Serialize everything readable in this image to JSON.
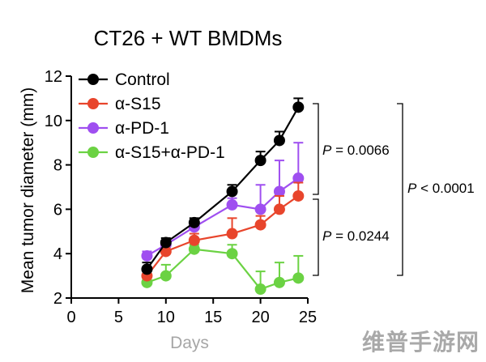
{
  "chart_data": {
    "type": "line",
    "title": "CT26 + WT BMDMs",
    "xlabel": "Days",
    "ylabel": "Mean tumor diameter (mm)",
    "xlim": [
      0,
      25
    ],
    "ylim": [
      2,
      12
    ],
    "xticks": [
      0,
      5,
      10,
      15,
      20,
      25
    ],
    "yticks": [
      2,
      4,
      6,
      8,
      10,
      12
    ],
    "x": [
      8,
      10,
      13,
      17,
      20,
      22,
      24
    ],
    "legend_position": "top-left",
    "series": [
      {
        "name": "Control",
        "color": "#000000",
        "values": [
          3.3,
          4.5,
          5.4,
          6.8,
          8.2,
          9.1,
          10.6
        ],
        "error": [
          0.3,
          0.2,
          0.2,
          0.3,
          0.4,
          0.4,
          0.4
        ]
      },
      {
        "name": "α-S15",
        "color": "#e8452c",
        "values": [
          3.0,
          4.1,
          4.6,
          4.9,
          5.3,
          6.0,
          6.6
        ],
        "error": [
          0.3,
          0.3,
          0.3,
          0.7,
          0.4,
          0.6,
          0.6
        ]
      },
      {
        "name": "α-PD-1",
        "color": "#9f4ff0",
        "values": [
          3.9,
          4.4,
          5.2,
          6.2,
          6.0,
          6.8,
          7.4
        ],
        "error": [
          0.2,
          0.2,
          0.3,
          0.3,
          1.1,
          1.4,
          1.6
        ]
      },
      {
        "name": "α-S15+α-PD-1",
        "color": "#6bd243",
        "values": [
          2.7,
          3.0,
          4.2,
          4.0,
          2.4,
          2.7,
          2.9
        ],
        "error": [
          0.2,
          0.5,
          0.2,
          0.4,
          0.8,
          0.9,
          1.0
        ]
      }
    ],
    "annotations": [
      {
        "text_italic": "P",
        "text_rest": " = 0.0066"
      },
      {
        "text_italic": "P",
        "text_rest": " = 0.0244"
      },
      {
        "text_italic": "P",
        "text_rest": " < 0.0001"
      }
    ]
  },
  "watermark": "维普手游网"
}
